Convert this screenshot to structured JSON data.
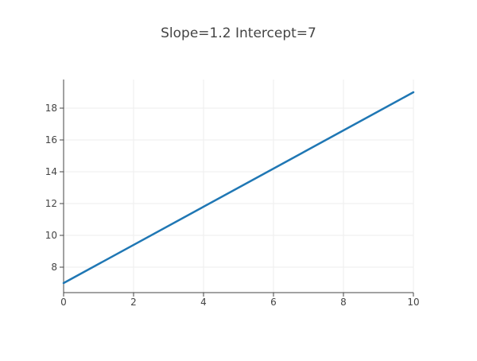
{
  "chart_data": {
    "type": "line",
    "title": "Slope=1.2 Intercept=7",
    "xlabel": "",
    "ylabel": "",
    "xlim": [
      0,
      10
    ],
    "ylim": [
      6.4,
      19.8
    ],
    "x_ticks": [
      0,
      2,
      4,
      6,
      8,
      10
    ],
    "y_ticks": [
      8,
      10,
      12,
      14,
      16,
      18
    ],
    "grid": true,
    "series": [
      {
        "x": [
          0,
          10
        ],
        "y": [
          7,
          19
        ]
      }
    ],
    "colors": {
      "line": "#1f77b4",
      "grid": "#eeeeee",
      "axis": "#444444",
      "text": "#444444"
    }
  }
}
